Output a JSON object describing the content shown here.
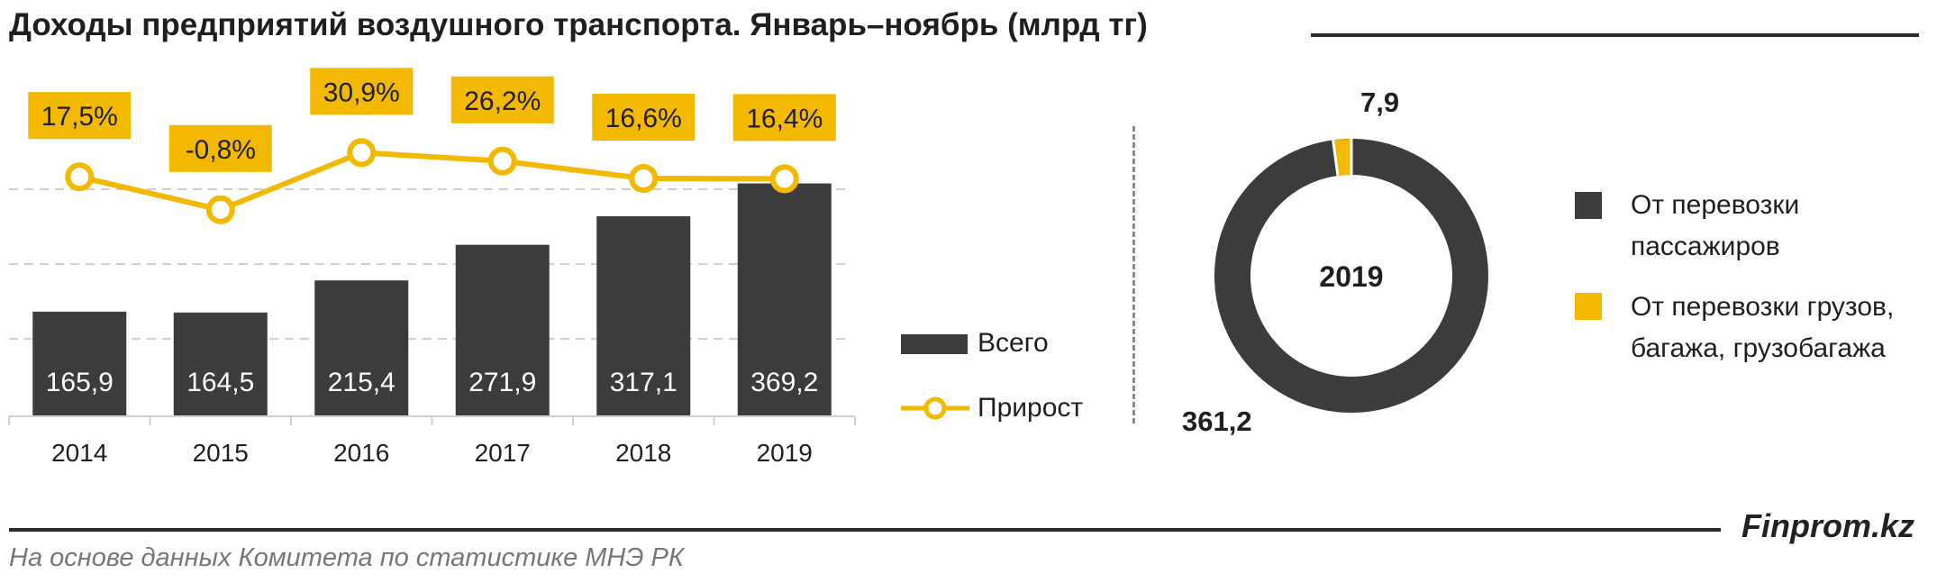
{
  "title": "Доходы предприятий воздушного транспорта. Январь–ноябрь (млрд тг)",
  "colors": {
    "bar": "#3c3c3c",
    "line": "#f3b800",
    "label_bg": "#f3b800",
    "grid": "#bfbfbf"
  },
  "legend": {
    "total": "Всего",
    "growth": "Прирост"
  },
  "chart_data": [
    {
      "type": "bar",
      "categories": [
        "2014",
        "2015",
        "2016",
        "2017",
        "2018",
        "2019"
      ],
      "series": [
        {
          "name": "Всего",
          "values": [
            165.9,
            164.5,
            215.4,
            271.9,
            317.1,
            369.2
          ]
        },
        {
          "name": "Прирост",
          "type": "line",
          "values": [
            17.5,
            -0.8,
            30.9,
            26.2,
            16.6,
            16.4
          ],
          "unit": "%"
        }
      ],
      "value_labels": [
        "165,9",
        "164,5",
        "215,4",
        "271,9",
        "317,1",
        "369,2"
      ],
      "growth_labels": [
        "17,5%",
        "-0,8%",
        "30,9%",
        "26,2%",
        "16,6%",
        "16,4%"
      ],
      "grid": true,
      "legend_position": "right"
    },
    {
      "type": "pie",
      "center_label": "2019",
      "labels": [
        "От перевозки пассажиров",
        "От перевозки грузов, багажа, грузобагажа"
      ],
      "legend_lines": [
        [
          "От перевозки",
          "пассажиров"
        ],
        [
          "От перевозки грузов,",
          "багажа, грузобагажа"
        ]
      ],
      "values": [
        361.2,
        7.9
      ],
      "value_labels": [
        "361,2",
        "7,9"
      ],
      "colors": [
        "#3c3c3c",
        "#f3b800"
      ],
      "legend_position": "right"
    }
  ],
  "brand": "Finprom.kz",
  "source": "На основе данных Комитета по статистике МНЭ РК"
}
